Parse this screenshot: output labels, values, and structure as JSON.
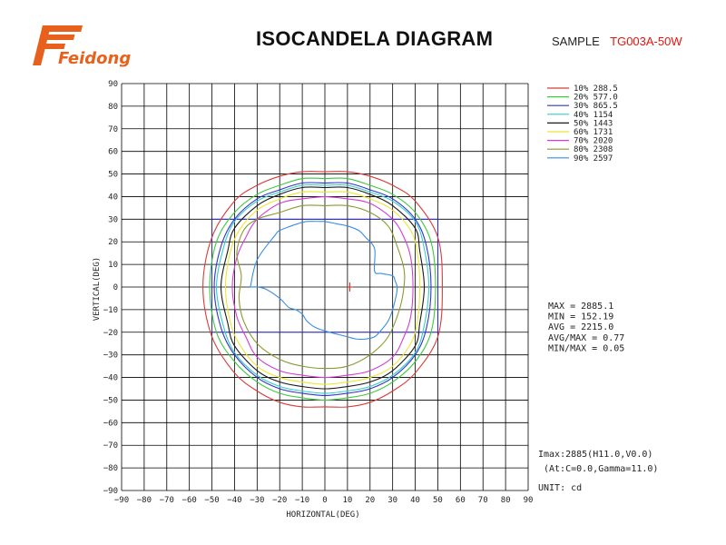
{
  "header": {
    "logo_text": "Feidong",
    "title": "ISOCANDELA DIAGRAM",
    "sample_label": "SAMPLE",
    "sample_code": "TG003A-50W"
  },
  "colors": {
    "logo": "#e8611c",
    "sample_code": "#e8140c",
    "grid": "#000000"
  },
  "chart_data": {
    "type": "contour",
    "xlabel": "HORIZONTAL(DEG)",
    "ylabel": "VERTICAL(DEG)",
    "xlim": [
      -90,
      90
    ],
    "ylim": [
      -90,
      90
    ],
    "xticks": [
      -90,
      -80,
      -70,
      -60,
      -50,
      -40,
      -30,
      -20,
      -10,
      0,
      10,
      20,
      30,
      40,
      50,
      60,
      70,
      80,
      90
    ],
    "yticks": [
      90,
      80,
      70,
      60,
      50,
      40,
      30,
      20,
      10,
      0,
      -10,
      -20,
      -30,
      -40,
      -50,
      -60,
      -70,
      -80,
      -90
    ],
    "grid": true,
    "legend_position": "top-right",
    "series": [
      {
        "name": "10% 288.5",
        "color": "#d93b3b",
        "x": [
          0,
          10,
          20,
          30,
          40,
          50,
          52,
          50,
          40,
          30,
          20,
          10,
          0,
          -10,
          -20,
          -30,
          -40,
          -50,
          -54,
          -50,
          -40,
          -30,
          -20,
          -10,
          0
        ],
        "y": [
          51,
          51,
          49,
          45,
          38,
          22,
          0,
          -22,
          -38,
          -46,
          -51,
          -53,
          -53,
          -53,
          -51,
          -46,
          -38,
          -22,
          0,
          22,
          38,
          45,
          49,
          51,
          51
        ]
      },
      {
        "name": "20% 577.0",
        "color": "#3dc93d",
        "x": [
          0,
          10,
          20,
          30,
          40,
          47,
          49,
          47,
          40,
          30,
          20,
          10,
          0,
          -10,
          -20,
          -30,
          -40,
          -48,
          -51,
          -48,
          -40,
          -30,
          -20,
          -10,
          0
        ],
        "y": [
          48,
          48,
          45,
          41,
          33,
          20,
          0,
          -20,
          -33,
          -42,
          -47,
          -49,
          -50,
          -49,
          -47,
          -42,
          -33,
          -20,
          0,
          20,
          33,
          41,
          45,
          48,
          48
        ]
      },
      {
        "name": "30% 865.5",
        "color": "#3434c8",
        "x": [
          0,
          10,
          20,
          30,
          40,
          45,
          47,
          45,
          40,
          30,
          20,
          10,
          0,
          -10,
          -20,
          -30,
          -40,
          -46,
          -49,
          -46,
          -40,
          -30,
          -20,
          -10,
          0
        ],
        "y": [
          46,
          46,
          43,
          39,
          30,
          18,
          0,
          -18,
          -30,
          -40,
          -45,
          -47,
          -48,
          -47,
          -45,
          -40,
          -30,
          -18,
          0,
          18,
          30,
          39,
          43,
          46,
          46
        ]
      },
      {
        "name": "40% 1154",
        "color": "#33cccc",
        "x": [
          0,
          10,
          20,
          30,
          40,
          44,
          46,
          44,
          40,
          30,
          20,
          10,
          0,
          -10,
          -20,
          -30,
          -40,
          -45,
          -48,
          -45,
          -40,
          -30,
          -20,
          -10,
          0
        ],
        "y": [
          45,
          45,
          42,
          38,
          29,
          17,
          0,
          -17,
          -29,
          -39,
          -44,
          -46,
          -47,
          -46,
          -44,
          -39,
          -29,
          -17,
          0,
          17,
          29,
          38,
          42,
          45,
          45
        ]
      },
      {
        "name": "50% 1443",
        "color": "#1a1a1a",
        "x": [
          0,
          10,
          20,
          30,
          40,
          42,
          44,
          42,
          40,
          30,
          20,
          10,
          0,
          -10,
          -20,
          -30,
          -40,
          -43,
          -46,
          -43,
          -40,
          -30,
          -20,
          -10,
          0
        ],
        "y": [
          44,
          44,
          41,
          36,
          26,
          16,
          0,
          -16,
          -26,
          -37,
          -42,
          -44,
          -45,
          -44,
          -42,
          -37,
          -26,
          -16,
          0,
          16,
          26,
          36,
          41,
          44,
          44
        ]
      },
      {
        "name": "60% 1731",
        "color": "#e8e833",
        "x": [
          0,
          10,
          20,
          30,
          38,
          41,
          42,
          41,
          38,
          30,
          20,
          10,
          0,
          -10,
          -20,
          -30,
          -38,
          -42,
          -44,
          -42,
          -38,
          -30,
          -20,
          -10,
          0
        ],
        "y": [
          42,
          42,
          39,
          34,
          25,
          15,
          0,
          -15,
          -25,
          -35,
          -40,
          -42,
          -43,
          -42,
          -40,
          -35,
          -25,
          -15,
          0,
          15,
          25,
          34,
          39,
          42,
          42
        ]
      },
      {
        "name": "70% 2020",
        "color": "#d43cd4",
        "x": [
          0,
          10,
          20,
          30,
          35,
          38,
          39,
          38,
          35,
          30,
          20,
          10,
          0,
          -10,
          -20,
          -30,
          -35,
          -39,
          -41,
          -39,
          -35,
          -30,
          -20,
          -10,
          0
        ],
        "y": [
          40,
          39,
          37,
          30,
          22,
          13,
          0,
          -13,
          -22,
          -31,
          -37,
          -39,
          -40,
          -39,
          -37,
          -31,
          -22,
          -13,
          0,
          13,
          22,
          30,
          37,
          39,
          40
        ]
      },
      {
        "name": "80% 2308",
        "color": "#8a9a2e",
        "x": [
          0,
          10,
          20,
          28,
          32,
          35,
          35,
          33,
          28,
          20,
          10,
          0,
          -10,
          -20,
          -30,
          -36,
          -38,
          -37,
          -39,
          -36,
          -30,
          -20,
          -10,
          0
        ],
        "y": [
          36,
          36,
          33,
          27,
          18,
          8,
          0,
          -10,
          -22,
          -30,
          -35,
          -36,
          -35,
          -32,
          -25,
          -15,
          -5,
          5,
          15,
          25,
          30,
          33,
          36,
          36
        ]
      },
      {
        "name": "90% 2597",
        "color": "#3a8ee0",
        "x": [
          -33,
          -30,
          -22,
          -20,
          -15,
          -12,
          -8,
          -2,
          0,
          5,
          10,
          15,
          18,
          22,
          22,
          25,
          30,
          31,
          32,
          30,
          28,
          25,
          22,
          18,
          14,
          10,
          6,
          2,
          -4,
          -8,
          -10,
          -13,
          -16,
          -20,
          -26,
          -30,
          -33
        ],
        "y": [
          0,
          12,
          23,
          25,
          27,
          28,
          29,
          29,
          29,
          28,
          27,
          25,
          22,
          17,
          7,
          6,
          5,
          3,
          -1,
          -10,
          -15,
          -19,
          -22,
          -23,
          -23,
          -22,
          -21,
          -20,
          -18,
          -15,
          -12,
          -10,
          -9,
          -5,
          -1,
          0,
          0
        ]
      }
    ],
    "reference_lines": [
      {
        "color": "#2b2bc9",
        "x": [
          -50,
          50,
          50,
          -50,
          -50
        ],
        "y": [
          30,
          30,
          -20,
          -20,
          30
        ]
      }
    ],
    "peak_marker": {
      "x": 11,
      "y": 0,
      "color": "#e8140c"
    },
    "stats": [
      "MAX = 2885.1",
      "MIN = 152.19",
      "AVG = 2215.0",
      "AVG/MAX = 0.77",
      "MIN/MAX = 0.05"
    ],
    "imax_lines": [
      "Imax:2885(H11.0,V0.0)",
      "(At:C=0.0,Gamma=11.0)"
    ],
    "unit": "UNIT: cd"
  }
}
